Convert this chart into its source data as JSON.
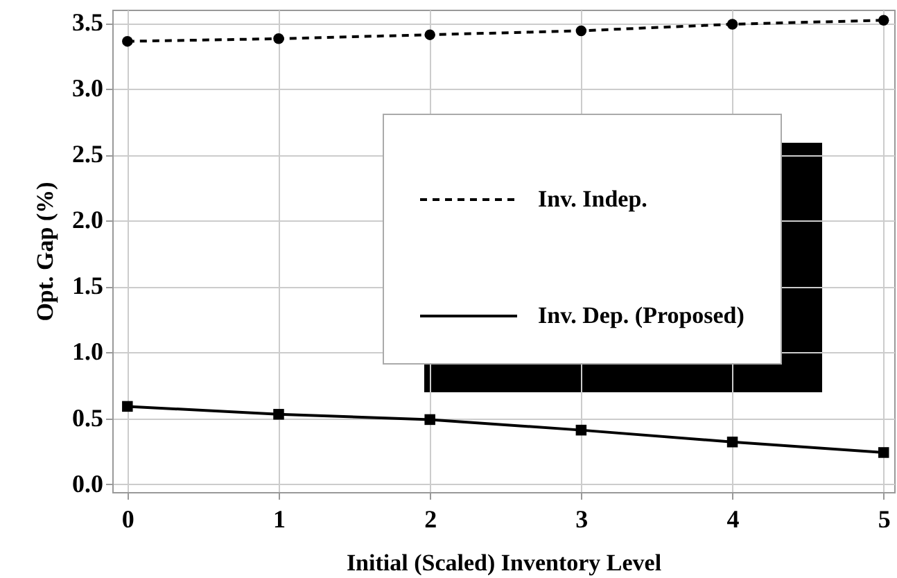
{
  "chart_data": {
    "type": "line",
    "xlabel": "Initial (Scaled) Inventory Level",
    "ylabel": "Opt. Gap (%)",
    "x": [
      0,
      1,
      2,
      3,
      4,
      5
    ],
    "series": [
      {
        "name": "Inv. Indep.",
        "color": "#000000",
        "values": [
          3.36,
          3.38,
          3.41,
          3.44,
          3.49,
          3.52
        ],
        "marker": "circle",
        "line_style": "dashed"
      },
      {
        "name": "Inv. Dep. (Proposed)",
        "color": "#000000",
        "values": [
          0.59,
          0.53,
          0.49,
          0.41,
          0.32,
          0.24
        ],
        "marker": "square",
        "line_style": "solid"
      }
    ],
    "xlim": [
      -0.1,
      5.07
    ],
    "xticks": [
      0,
      1,
      2,
      3,
      4,
      5
    ],
    "ylim": [
      -0.06,
      3.6
    ],
    "yticks": [
      {
        "value": 0,
        "label": "0.0"
      },
      0.5,
      {
        "value": 1,
        "label": "1.0"
      },
      1.5,
      {
        "value": 2,
        "label": "2.0"
      },
      2.5,
      {
        "value": 3,
        "label": "3.0"
      },
      3.5
    ],
    "grid": true,
    "legend": "right"
  }
}
